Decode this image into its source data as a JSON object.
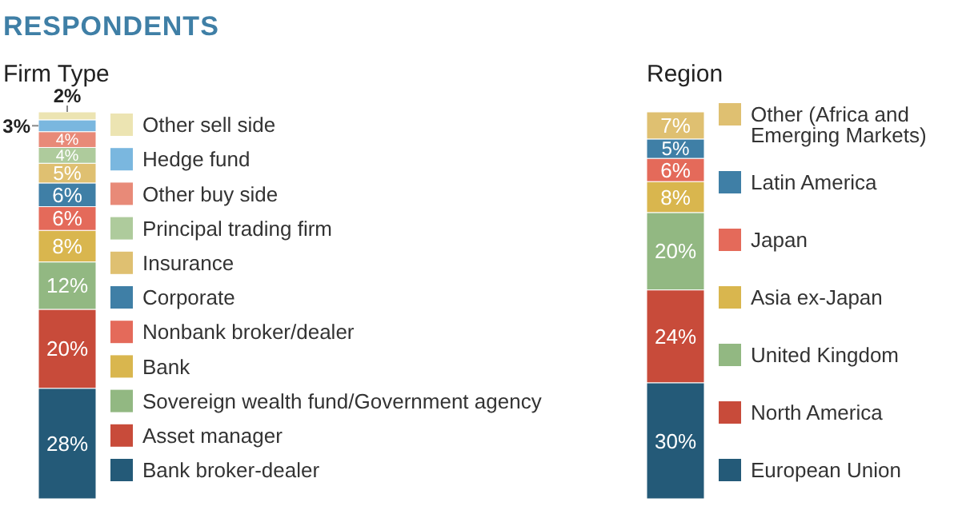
{
  "chart_data": [
    {
      "type": "bar",
      "title": "RESPONDENTS",
      "subtitle": "Firm Type",
      "categories": [
        null
      ],
      "stacked": true,
      "legend": "right",
      "series": [
        {
          "name": "Bank broker-dealer",
          "color": "#245a78",
          "values": [
            28
          ],
          "value_labels": [
            "28%"
          ]
        },
        {
          "name": "Asset manager",
          "color": "#c84b3a",
          "values": [
            20
          ],
          "value_labels": [
            "20%"
          ]
        },
        {
          "name": "Sovereign wealth fund/Government agency",
          "color": "#92b882",
          "values": [
            12
          ],
          "value_labels": [
            "12%"
          ]
        },
        {
          "name": "Bank",
          "color": "#d9b64e",
          "values": [
            8
          ],
          "value_labels": [
            "8%"
          ]
        },
        {
          "name": "Nonbank broker/dealer",
          "color": "#e46a5a",
          "values": [
            6
          ],
          "value_labels": [
            "6%"
          ]
        },
        {
          "name": "Corporate",
          "color": "#3f7fa6",
          "values": [
            6
          ],
          "value_labels": [
            "6%"
          ]
        },
        {
          "name": "Insurance",
          "color": "#dfc071",
          "values": [
            5
          ],
          "value_labels": [
            "5%"
          ]
        },
        {
          "name": "Principal trading firm",
          "color": "#aecb9c",
          "values": [
            4
          ],
          "value_labels": [
            "4%"
          ]
        },
        {
          "name": "Other buy side",
          "color": "#e88a78",
          "values": [
            4
          ],
          "value_labels": [
            "4%"
          ]
        },
        {
          "name": "Hedge fund",
          "color": "#7ab7df",
          "values": [
            3
          ],
          "value_labels": [
            "3%"
          ]
        },
        {
          "name": "Other sell side",
          "color": "#ece4b2",
          "values": [
            2
          ],
          "value_labels": [
            "2%"
          ]
        }
      ]
    },
    {
      "type": "bar",
      "title": "Region",
      "categories": [
        null
      ],
      "stacked": true,
      "legend": "right",
      "series": [
        {
          "name": "European Union",
          "color": "#245a78",
          "values": [
            30
          ],
          "value_labels": [
            "30%"
          ]
        },
        {
          "name": "North America",
          "color": "#c84b3a",
          "values": [
            24
          ],
          "value_labels": [
            "24%"
          ]
        },
        {
          "name": "United Kingdom",
          "color": "#92b882",
          "values": [
            20
          ],
          "value_labels": [
            "20%"
          ]
        },
        {
          "name": "Asia ex-Japan",
          "color": "#d9b64e",
          "values": [
            8
          ],
          "value_labels": [
            "8%"
          ]
        },
        {
          "name": "Japan",
          "color": "#e46a5a",
          "values": [
            6
          ],
          "value_labels": [
            "6%"
          ]
        },
        {
          "name": "Latin America",
          "color": "#3f7fa6",
          "values": [
            5
          ],
          "value_labels": [
            "5%"
          ]
        },
        {
          "name": "Other (Africa and Emerging Markets)",
          "color": "#dfc071",
          "values": [
            7
          ],
          "value_labels": [
            "7%"
          ]
        }
      ]
    }
  ]
}
